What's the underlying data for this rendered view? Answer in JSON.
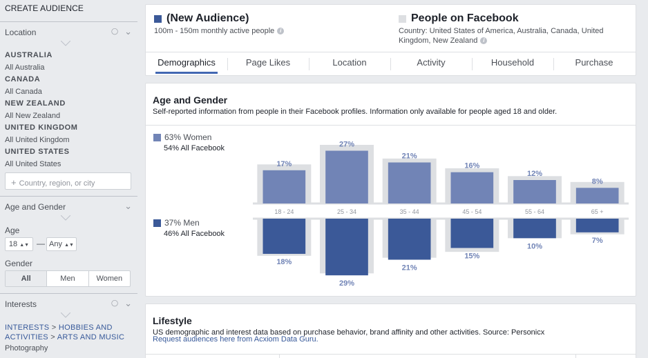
{
  "sidebar": {
    "title": "CREATE AUDIENCE",
    "location": {
      "label": "Location",
      "items": [
        {
          "country": "AUSTRALIA",
          "all": "All Australia"
        },
        {
          "country": "CANADA",
          "all": "All Canada"
        },
        {
          "country": "NEW ZEALAND",
          "all": "All New Zealand"
        },
        {
          "country": "UNITED KINGDOM",
          "all": "All United Kingdom"
        },
        {
          "country": "UNITED STATES",
          "all": "All United States"
        }
      ],
      "input_placeholder": "Country, region, or city"
    },
    "age_gender": {
      "label": "Age and Gender",
      "age_label": "Age",
      "age_min": "18",
      "age_max": "Any",
      "gender_label": "Gender",
      "gender_options": [
        "All",
        "Men",
        "Women"
      ],
      "gender_selected": "All"
    },
    "interests": {
      "label": "Interests",
      "path_1": "INTERESTS",
      "path_2": "HOBBIES AND ACTIVITIES",
      "path_3": "ARTS AND MUSIC",
      "separator": ">",
      "sub": "Photography"
    }
  },
  "header": {
    "audience_title": "(New Audience)",
    "audience_sub": "100m - 150m monthly active people",
    "compare_title": "People on Facebook",
    "compare_sub": "Country: United States of America, Australia, Canada, United Kingdom, New Zealand",
    "audience_color": "#3b5998",
    "compare_color": "#dddfe2"
  },
  "tabs": [
    "Demographics",
    "Page Likes",
    "Location",
    "Activity",
    "Household",
    "Purchase"
  ],
  "active_tab": "Demographics",
  "age_gender_section": {
    "title": "Age and Gender",
    "desc": "Self-reported information from people in their Facebook profiles. Information only available for people aged 18 and older.",
    "women_label": "63% Women",
    "women_sub": "54% All Facebook",
    "men_label": "37% Men",
    "men_sub": "46% All Facebook",
    "women_color": "#7184b6",
    "men_color": "#3b5998",
    "baseline_color": "#dddfe2"
  },
  "chart_data": {
    "type": "bar",
    "categories": [
      "18 - 24",
      "25 - 34",
      "35 - 44",
      "45 - 54",
      "55 - 64",
      "65 +"
    ],
    "series": [
      {
        "name": "Women",
        "values": [
          17,
          27,
          21,
          16,
          12,
          8
        ],
        "labels": [
          "17%",
          "27%",
          "21%",
          "16%",
          "12%",
          "8%"
        ],
        "baseline": [
          20,
          30,
          23,
          18,
          14,
          11
        ]
      },
      {
        "name": "Men",
        "values": [
          18,
          29,
          21,
          15,
          10,
          7
        ],
        "labels": [
          "18%",
          "29%",
          "21%",
          "15%",
          "10%",
          "7%"
        ],
        "baseline": [
          19,
          28,
          20,
          17,
          10,
          8
        ]
      }
    ],
    "ylim": [
      0,
      30
    ]
  },
  "lifestyle_section": {
    "title": "Lifestyle",
    "desc": "US demographic and interest data based on purchase behavior, brand affinity and other activities. Source: Personicx",
    "link": "Request audiences here from Acxiom Data Guru."
  }
}
